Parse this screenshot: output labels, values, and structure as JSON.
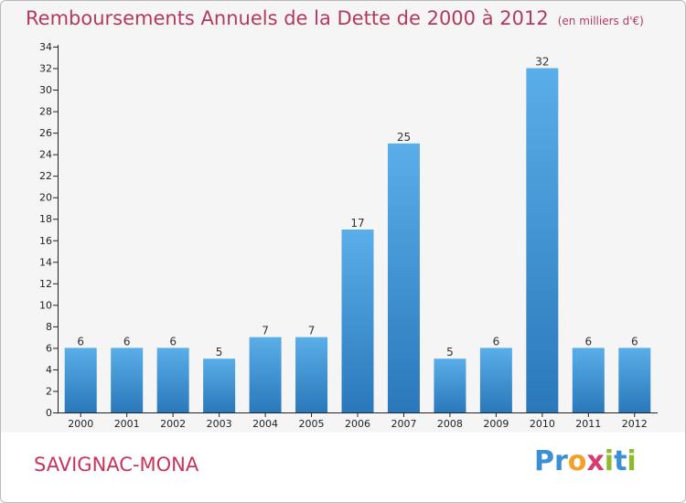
{
  "page": {
    "title": "Remboursements Annuels de la Dette de 2000 à 2012",
    "subtitle": "(en milliers d'€)",
    "commune": "SAVIGNAC-MONA",
    "logo_text": "Proxiti",
    "logo_letters": [
      {
        "ch": "P",
        "color": "#3a8fd6"
      },
      {
        "ch": "r",
        "color": "#3a8fd6"
      },
      {
        "ch": "o",
        "color": "#f3a12a"
      },
      {
        "ch": "x",
        "color": "#d63c6e"
      },
      {
        "ch": "i",
        "color": "#8dbb2a"
      },
      {
        "ch": "t",
        "color": "#3a8fd6"
      },
      {
        "ch": "i",
        "color": "#8dbb2a"
      }
    ]
  },
  "chart_data": {
    "type": "bar",
    "title": "Remboursements Annuels de la Dette de 2000 à 2012",
    "subtitle": "(en milliers d'€)",
    "categories": [
      "2000",
      "2001",
      "2002",
      "2003",
      "2004",
      "2005",
      "2006",
      "2007",
      "2008",
      "2009",
      "2010",
      "2011",
      "2012"
    ],
    "values": [
      6,
      6,
      6,
      5,
      7,
      7,
      17,
      25,
      5,
      6,
      32,
      6,
      6
    ],
    "ylim": [
      0,
      34
    ],
    "yticks": [
      0,
      2,
      4,
      6,
      8,
      10,
      12,
      14,
      16,
      18,
      20,
      22,
      24,
      26,
      28,
      30,
      32,
      34
    ],
    "grid": false,
    "legend": "none",
    "bar_color_top": "#5aaee8",
    "bar_color_bottom": "#2a78bb",
    "title_color": "#b33a5d"
  }
}
